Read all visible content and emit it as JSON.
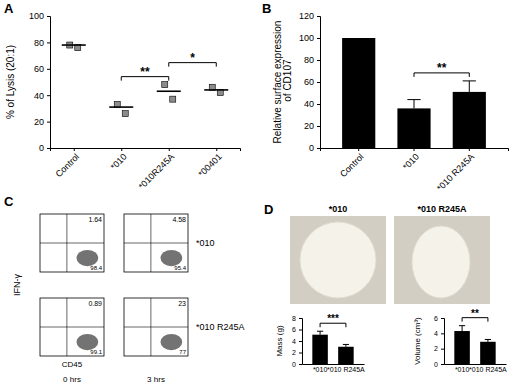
{
  "chart_data": [
    {
      "type": "scatter",
      "title": "A",
      "y_label": "% of Lysis (20:1)",
      "categories": [
        "Control",
        "*010",
        "*010R245A",
        "*00401"
      ],
      "values": [
        78,
        31,
        43,
        44
      ],
      "points": [
        [
          78,
          76
        ],
        [
          33,
          26
        ],
        [
          48,
          37
        ],
        [
          46,
          42
        ]
      ],
      "marker": "square",
      "color": "#000000",
      "ylim": [
        0,
        100
      ],
      "yticks": [
        0,
        20,
        40,
        60,
        80,
        100
      ],
      "annotations": [
        {
          "text": "**",
          "categories": [
            "*010",
            "*010R245A"
          ]
        },
        {
          "text": "*",
          "categories": [
            "*010R245A",
            "*00401"
          ]
        }
      ]
    },
    {
      "type": "bar",
      "title": "B",
      "y_label": "Relative surface expression of CD107",
      "categories": [
        "Control",
        "*010",
        "*010 R245A"
      ],
      "values": [
        100,
        36,
        51
      ],
      "errors": [
        null,
        8,
        10
      ],
      "color": "#000000",
      "ylim": [
        0,
        120
      ],
      "yticks": [
        0,
        20,
        40,
        60,
        80,
        100,
        120
      ],
      "annotations": [
        {
          "text": "**",
          "categories": [
            "*010",
            "*010 R245A"
          ]
        }
      ]
    },
    {
      "type": "flow",
      "title": "C",
      "x_label": "CD45",
      "y_label": "IFN-γ",
      "columns": [
        "0 hrs",
        "3 hrs"
      ],
      "rows": [
        "*010",
        "*010 R245A"
      ],
      "upper_right": [
        [
          1.64,
          4.58
        ],
        [
          0.89,
          23
        ]
      ],
      "lower_right": [
        [
          98.4,
          95.4
        ],
        [
          99.1,
          77
        ]
      ],
      "data_labels": true,
      "tick_labels": false
    },
    {
      "type": "image",
      "title": "D",
      "labels": [
        "*010",
        "*010 R245A"
      ]
    },
    {
      "type": "bar",
      "y_label": "Mass (g)",
      "categories": [
        "*010",
        "*010 R245A"
      ],
      "values": [
        5.1,
        3
      ],
      "errors": [
        0.6,
        0.4
      ],
      "color": "#000000",
      "ylim": [
        0,
        8
      ],
      "yticks": [
        0,
        2,
        4,
        6,
        8
      ],
      "annotations": [
        {
          "text": "***",
          "categories": [
            "*010",
            "*010 R245A"
          ]
        }
      ]
    },
    {
      "type": "bar",
      "y_label": "Volume (cm³)",
      "categories": [
        "*010",
        "*010 R245A"
      ],
      "values": [
        4.3,
        2.9
      ],
      "errors": [
        0.7,
        0.3
      ],
      "color": "#000000",
      "ylim": [
        0,
        6
      ],
      "yticks": [
        0,
        2,
        4,
        6
      ],
      "annotations": [
        {
          "text": "**",
          "categories": [
            "*010",
            "*010 R245A"
          ]
        }
      ]
    }
  ]
}
